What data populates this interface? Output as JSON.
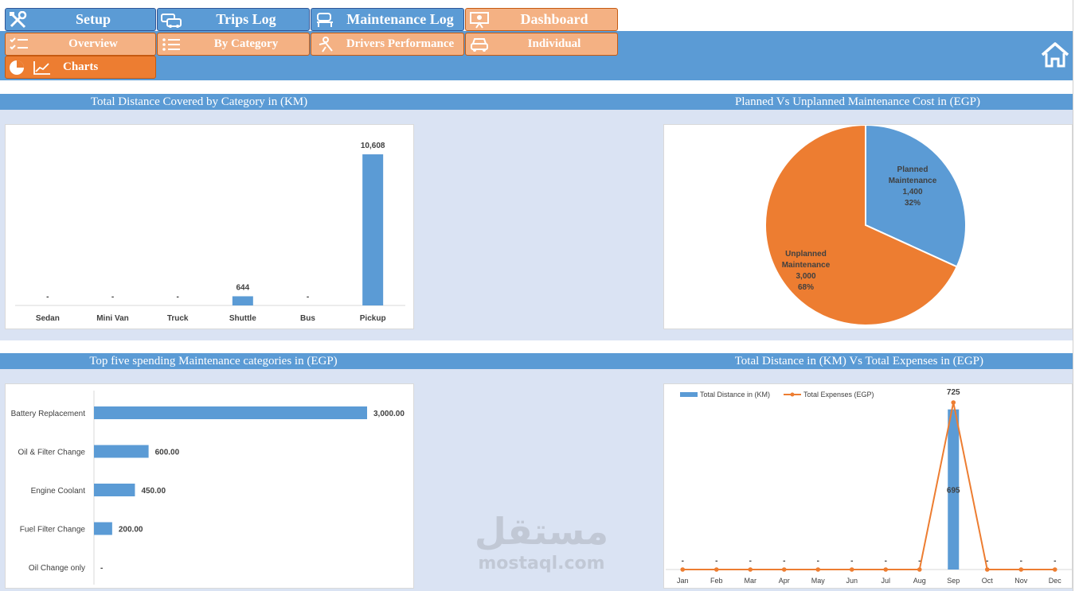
{
  "nav": {
    "tabs": [
      {
        "label": "Setup",
        "icon": "tools-icon"
      },
      {
        "label": "Trips Log",
        "icon": "cars-icon"
      },
      {
        "label": "Maintenance Log",
        "icon": "car-lift-icon"
      },
      {
        "label": "Dashboard",
        "icon": "presentation-icon"
      }
    ],
    "subtabs": [
      {
        "label": "Overview",
        "icon": "checklist-icon"
      },
      {
        "label": "By Category",
        "icon": "list-icon"
      },
      {
        "label": "Drivers Performance",
        "icon": "driver-icon"
      },
      {
        "label": "Individual",
        "icon": "car-icon"
      }
    ],
    "active_tab": {
      "label": "Charts",
      "icon": "pie-line-chart-icon"
    },
    "home_icon": "home-icon"
  },
  "colors": {
    "blue": "#5b9bd5",
    "orange": "#ed7d31",
    "peach": "#f4b183",
    "panel": "#dae3f3"
  },
  "sections": {
    "distance_by_category": "Total Distance Covered by Category in (KM)",
    "planned_vs_unplanned": "Planned Vs Unplanned Maintenance Cost in (EGP)",
    "top_five_spending": "Top five spending Maintenance categories in (EGP)",
    "distance_vs_expenses": "Total Distance in (KM) Vs Total Expenses in (EGP)"
  },
  "watermark": {
    "arabic": "مستقل",
    "latin": "mostaql.com"
  },
  "chart_data": [
    {
      "type": "bar",
      "title": "Total Distance Covered by Category in (KM)",
      "categories": [
        "Sedan",
        "Mini Van",
        "Truck",
        "Shuttle",
        "Bus",
        "Pickup"
      ],
      "values": [
        0,
        0,
        0,
        644,
        0,
        10608
      ],
      "data_labels": [
        "-",
        "-",
        "-",
        "644",
        "-",
        "10,608"
      ],
      "ylim": [
        0,
        11000
      ],
      "grid": false
    },
    {
      "type": "pie",
      "title": "Planned Vs Unplanned Maintenance Cost in (EGP)",
      "slices": [
        {
          "name": "Planned Maintenance",
          "value": 1400,
          "value_label": "1,400",
          "pct": "32%",
          "color": "#5b9bd5",
          "label_lines": [
            "Planned",
            "Maintenance"
          ]
        },
        {
          "name": "Unplanned Maintenance",
          "value": 3000,
          "value_label": "3,000",
          "pct": "68%",
          "color": "#ed7d31",
          "label_lines": [
            "Unplanned",
            "Maintenance"
          ]
        }
      ]
    },
    {
      "type": "bar",
      "orientation": "horizontal",
      "title": "Top five spending Maintenance categories in (EGP)",
      "categories": [
        "Battery Replacement",
        "Oil & Filter Change",
        "Engine Coolant",
        "Fuel Filter Change",
        "Oil Change only"
      ],
      "values": [
        3000,
        600,
        450,
        200,
        0
      ],
      "data_labels": [
        "3,000.00",
        "600.00",
        "450.00",
        "200.00",
        "-"
      ],
      "xlim": [
        0,
        3000
      ],
      "grid": false
    },
    {
      "type": "bar",
      "title": "Total Distance in (KM) Vs Total Expenses in (EGP)",
      "categories": [
        "Jan",
        "Feb",
        "Mar",
        "Apr",
        "May",
        "Jun",
        "Jul",
        "Aug",
        "Sep",
        "Oct",
        "Nov",
        "Dec"
      ],
      "series": [
        {
          "name": "Total Distance in (KM)",
          "type": "bar",
          "color": "#5b9bd5",
          "values": [
            0,
            0,
            0,
            0,
            0,
            0,
            0,
            0,
            695,
            0,
            0,
            0
          ],
          "data_labels": [
            "",
            "",
            "",
            "",
            "",
            "",
            "",
            "",
            "695",
            "",
            "",
            ""
          ]
        },
        {
          "name": "Total Expenses (EGP)",
          "type": "line",
          "color": "#ed7d31",
          "values": [
            0,
            0,
            0,
            0,
            0,
            0,
            0,
            0,
            725,
            0,
            0,
            0
          ],
          "data_labels": [
            "-",
            "-",
            "-",
            "-",
            "-",
            "-",
            "-",
            "-",
            "725",
            "-",
            "-",
            "-"
          ]
        }
      ],
      "ylim": [
        0,
        725
      ],
      "legend": "top-left",
      "grid": false
    }
  ]
}
